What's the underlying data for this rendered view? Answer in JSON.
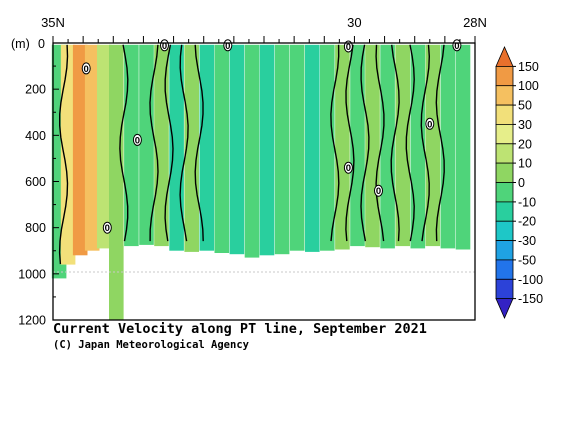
{
  "chart_data": {
    "type": "heatmap",
    "title": "Current Velocity along PT line, September 2021",
    "credit": "(C) Japan Meteorological Agency",
    "x_axis": {
      "labels": [
        "35N",
        "30",
        "28N"
      ],
      "tick_latitudes": [
        35,
        30,
        28
      ],
      "range_lat": [
        35,
        28
      ]
    },
    "y_axis": {
      "unit": "(m)",
      "zero_label": "0",
      "tick_labels": [
        "200",
        "400",
        "600",
        "800",
        "1000",
        "1200"
      ],
      "tick_values": [
        200,
        400,
        600,
        800,
        1000,
        1200
      ],
      "range": [
        0,
        1200
      ]
    },
    "colorbar": {
      "labels": [
        "150",
        "100",
        "50",
        "30",
        "20",
        "10",
        "0",
        "-10",
        "-20",
        "-30",
        "-50",
        "-100",
        "-150"
      ],
      "colors": [
        "#e8702c",
        "#f09a44",
        "#f5c060",
        "#f2e07a",
        "#e6ee8a",
        "#bde373",
        "#8fd662",
        "#4fd47a",
        "#29cf9e",
        "#1ec7c7",
        "#1fa2e3",
        "#2274ea",
        "#2c42d8",
        "#3322c4"
      ]
    },
    "contour_labels": [
      "0",
      "0",
      "0",
      "0",
      "0",
      "0",
      "0",
      "0",
      "0",
      "0"
    ],
    "column_profiles": [
      {
        "lat": 34.9,
        "bottom_m": 1020,
        "value_m_s": -5
      },
      {
        "lat": 34.75,
        "bottom_m": 960,
        "value_m_s": 40
      },
      {
        "lat": 34.55,
        "bottom_m": 920,
        "value_m_s": 110
      },
      {
        "lat": 34.35,
        "bottom_m": 900,
        "value_m_s": 60
      },
      {
        "lat": 34.15,
        "bottom_m": 890,
        "value_m_s": 15
      },
      {
        "lat": 33.95,
        "bottom_m": 1200,
        "value_m_s": 5
      },
      {
        "lat": 33.7,
        "bottom_m": 880,
        "value_m_s": -4
      },
      {
        "lat": 33.45,
        "bottom_m": 875,
        "value_m_s": -6
      },
      {
        "lat": 33.2,
        "bottom_m": 880,
        "value_m_s": 3
      },
      {
        "lat": 32.95,
        "bottom_m": 900,
        "value_m_s": -12
      },
      {
        "lat": 32.7,
        "bottom_m": 905,
        "value_m_s": 8
      },
      {
        "lat": 32.45,
        "bottom_m": 900,
        "value_m_s": -14
      },
      {
        "lat": 32.2,
        "bottom_m": 910,
        "value_m_s": -4
      },
      {
        "lat": 31.95,
        "bottom_m": 915,
        "value_m_s": -15
      },
      {
        "lat": 31.7,
        "bottom_m": 930,
        "value_m_s": -8
      },
      {
        "lat": 31.45,
        "bottom_m": 920,
        "value_m_s": -18
      },
      {
        "lat": 31.2,
        "bottom_m": 915,
        "value_m_s": -10
      },
      {
        "lat": 30.95,
        "bottom_m": 900,
        "value_m_s": -6
      },
      {
        "lat": 30.7,
        "bottom_m": 905,
        "value_m_s": -12
      },
      {
        "lat": 30.45,
        "bottom_m": 900,
        "value_m_s": -5
      },
      {
        "lat": 30.2,
        "bottom_m": 895,
        "value_m_s": 4
      },
      {
        "lat": 29.95,
        "bottom_m": 880,
        "value_m_s": -8
      },
      {
        "lat": 29.7,
        "bottom_m": 885,
        "value_m_s": 5
      },
      {
        "lat": 29.45,
        "bottom_m": 890,
        "value_m_s": -6
      },
      {
        "lat": 29.2,
        "bottom_m": 880,
        "value_m_s": 3
      },
      {
        "lat": 28.95,
        "bottom_m": 890,
        "value_m_s": -10
      },
      {
        "lat": 28.7,
        "bottom_m": 880,
        "value_m_s": 2
      },
      {
        "lat": 28.45,
        "bottom_m": 890,
        "value_m_s": -7
      },
      {
        "lat": 28.2,
        "bottom_m": 895,
        "value_m_s": -3
      }
    ]
  }
}
